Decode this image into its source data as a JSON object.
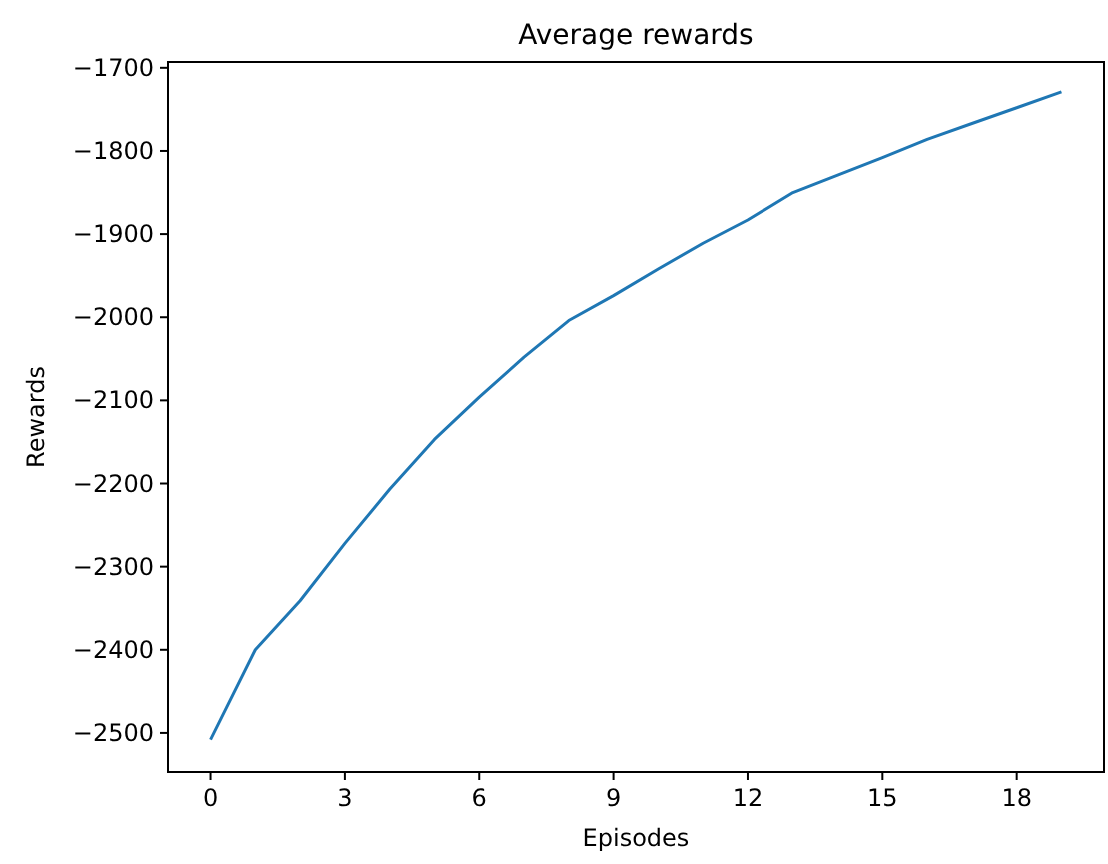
{
  "chart_data": {
    "type": "line",
    "title": "Average rewards",
    "xlabel": "Episodes",
    "ylabel": "Rewards",
    "x": [
      0,
      1,
      2,
      3,
      4,
      5,
      6,
      7,
      8,
      9,
      10,
      11,
      12,
      13,
      14,
      15,
      16,
      17,
      18,
      19
    ],
    "series": [
      {
        "color": "#1f77b4",
        "values": [
          -2508,
          -2400,
          -2341,
          -2272,
          -2207,
          -2147,
          -2096,
          -2048,
          -2004,
          -1974,
          -1942,
          -1911,
          -1883,
          -1850,
          -1829,
          -1808,
          -1786,
          -1767,
          -1748,
          -1729
        ]
      }
    ],
    "xlim": [
      -0.95,
      19.95
    ],
    "xticks": [
      0,
      3,
      6,
      9,
      12,
      15,
      18
    ],
    "ylim": [
      -2547,
      -1693
    ],
    "yticks": [
      -2500,
      -2400,
      -2300,
      -2200,
      -2100,
      -2000,
      -1900,
      -1800,
      -1700
    ],
    "grid": false
  }
}
